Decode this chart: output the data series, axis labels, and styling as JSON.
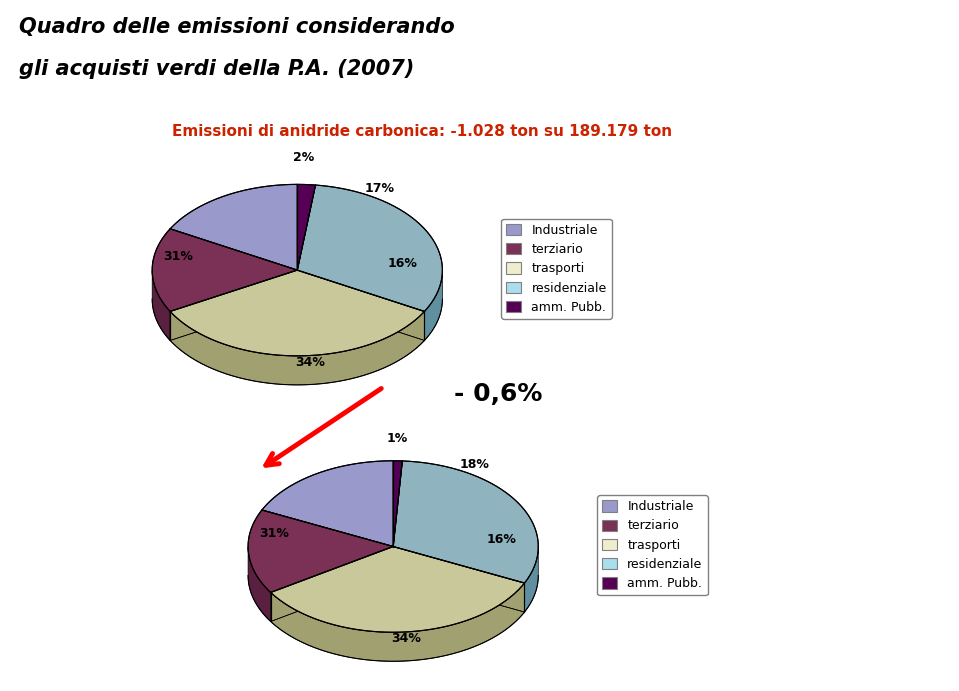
{
  "title_line1": "Quadro delle emissioni considerando",
  "title_line2": "gli acquisti verdi della P.A. (2007)",
  "subtitle": "Emissioni di anidride carbonica: -1.028 ton su 189.179 ton",
  "subtitle_color": "#CC2200",
  "arrow_text": "- 0,6%",
  "pie1_values": [
    17,
    16,
    34,
    31,
    2
  ],
  "pie2_values": [
    18,
    16,
    34,
    31,
    1
  ],
  "labels": [
    "Industriale",
    "terziario",
    "trasporti",
    "residenziale",
    "amm. Pubb."
  ],
  "pie1_pct_labels": [
    "17%",
    "16%",
    "34%",
    "31%",
    "2%"
  ],
  "pie2_pct_labels": [
    "18%",
    "16%",
    "34%",
    "31%",
    "1%"
  ],
  "colors_top": [
    "#9999CC",
    "#7B3055",
    "#C8C89A",
    "#8FB4C0",
    "#550055"
  ],
  "colors_side": [
    "#7777AA",
    "#5A2040",
    "#A0A070",
    "#6090A0",
    "#330033"
  ],
  "background_color": "#FFFFFF",
  "legend_colors": [
    "#9999CC",
    "#7B3055",
    "#EEEECC",
    "#AADDEE",
    "#550055"
  ]
}
